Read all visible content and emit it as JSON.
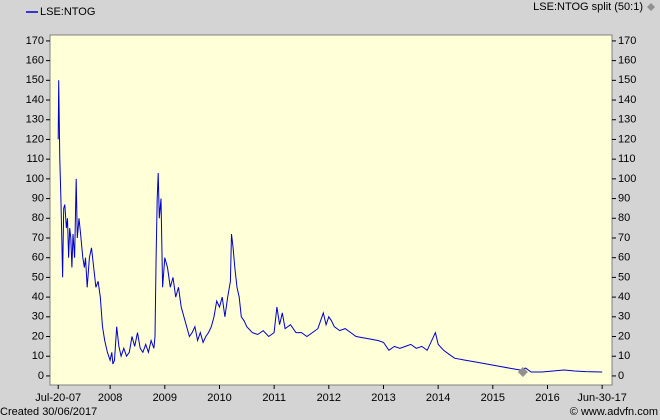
{
  "chart_data": {
    "type": "line",
    "legend": "top-left",
    "series": [
      {
        "name": "LSE:NTOG",
        "color": "#0000cc",
        "values": [
          120,
          150,
          110,
          90,
          65,
          50,
          85,
          87,
          75,
          80,
          60,
          75,
          70,
          55,
          72,
          60,
          100,
          70,
          80,
          72,
          60,
          55,
          60,
          45,
          60,
          65,
          55,
          45,
          48,
          40,
          25,
          18,
          12,
          8,
          12,
          6,
          8,
          25,
          15,
          10,
          14,
          10,
          12,
          20,
          15,
          22,
          14,
          12,
          16,
          12,
          18,
          14,
          20,
          60,
          90,
          103,
          80,
          90,
          45,
          60,
          55,
          45,
          50,
          40,
          45,
          35,
          30,
          25,
          20,
          22,
          25,
          18,
          22,
          17,
          20,
          22,
          25,
          30,
          38,
          35,
          40,
          30,
          40,
          48,
          72,
          65,
          55,
          45,
          40,
          30,
          28,
          25,
          22,
          21,
          23,
          20,
          22,
          35,
          26,
          32,
          24,
          26,
          22,
          22,
          20,
          22,
          24,
          32,
          26,
          30,
          28,
          25,
          23,
          24,
          22,
          20,
          19,
          18,
          17,
          13,
          15,
          14,
          15,
          16,
          14,
          15,
          13,
          22,
          16,
          13,
          11,
          9,
          8,
          7,
          6,
          5,
          4,
          3,
          4,
          2,
          2,
          2.5,
          3,
          2.5,
          2.2,
          2
        ]
      }
    ],
    "x": [
      2007.55,
      2007.56,
      2007.58,
      2007.6,
      2007.62,
      2007.63,
      2007.65,
      2007.67,
      2007.7,
      2007.72,
      2007.74,
      2007.76,
      2007.78,
      2007.8,
      2007.82,
      2007.85,
      2007.88,
      2007.9,
      2007.93,
      2007.96,
      2008.0,
      2008.03,
      2008.05,
      2008.08,
      2008.12,
      2008.16,
      2008.2,
      2008.24,
      2008.28,
      2008.32,
      2008.36,
      2008.4,
      2008.45,
      2008.5,
      2008.53,
      2008.55,
      2008.58,
      2008.62,
      2008.66,
      2008.7,
      2008.75,
      2008.8,
      2008.85,
      2008.9,
      2008.95,
      2009.0,
      2009.05,
      2009.1,
      2009.15,
      2009.2,
      2009.25,
      2009.3,
      2009.32,
      2009.34,
      2009.36,
      2009.38,
      2009.4,
      2009.43,
      2009.46,
      2009.5,
      2009.55,
      2009.6,
      2009.65,
      2009.7,
      2009.75,
      2009.8,
      2009.85,
      2009.9,
      2009.95,
      2010.0,
      2010.05,
      2010.1,
      2010.15,
      2010.2,
      2010.25,
      2010.3,
      2010.35,
      2010.4,
      2010.45,
      2010.5,
      2010.55,
      2010.6,
      2010.65,
      2010.7,
      2010.72,
      2010.75,
      2010.78,
      2010.82,
      2010.86,
      2010.9,
      2010.95,
      2011.0,
      2011.1,
      2011.2,
      2011.3,
      2011.4,
      2011.5,
      2011.55,
      2011.6,
      2011.65,
      2011.7,
      2011.8,
      2011.9,
      2012.0,
      2012.1,
      2012.2,
      2012.3,
      2012.4,
      2012.45,
      2012.5,
      2012.55,
      2012.6,
      2012.7,
      2012.8,
      2012.9,
      2013.0,
      2013.2,
      2013.4,
      2013.5,
      2013.6,
      2013.7,
      2013.8,
      2013.9,
      2014.0,
      2014.1,
      2014.2,
      2014.3,
      2014.45,
      2014.5,
      2014.6,
      2014.7,
      2014.8,
      2015.0,
      2015.2,
      2015.4,
      2015.6,
      2015.8,
      2016.0,
      2016.1,
      2016.2,
      2016.4,
      2016.6,
      2016.8,
      2017.0,
      2017.2,
      2017.5
    ],
    "xlim": [
      2007.4,
      2017.68
    ],
    "xticks": [
      {
        "value": 2007.55,
        "label": "Jul-20-07"
      },
      {
        "value": 2008.5,
        "label": "2008"
      },
      {
        "value": 2009.5,
        "label": "2009"
      },
      {
        "value": 2010.5,
        "label": "2010"
      },
      {
        "value": 2011.5,
        "label": "2011"
      },
      {
        "value": 2012.5,
        "label": "2012"
      },
      {
        "value": 2013.5,
        "label": "2013"
      },
      {
        "value": 2014.5,
        "label": "2014"
      },
      {
        "value": 2015.5,
        "label": "2015"
      },
      {
        "value": 2016.5,
        "label": "2016"
      },
      {
        "value": 2017.5,
        "label": "Jun-30-17"
      }
    ],
    "ylim": [
      -4.6,
      173
    ],
    "yticks": [
      0,
      10,
      20,
      30,
      40,
      50,
      60,
      70,
      80,
      90,
      100,
      110,
      120,
      130,
      140,
      150,
      160,
      170
    ],
    "split": {
      "label": "LSE:NTOG split (50:1)",
      "x": 2016.05,
      "y": 2
    },
    "created": "Created 30/06/2017",
    "source": "© www.advfn.com"
  }
}
